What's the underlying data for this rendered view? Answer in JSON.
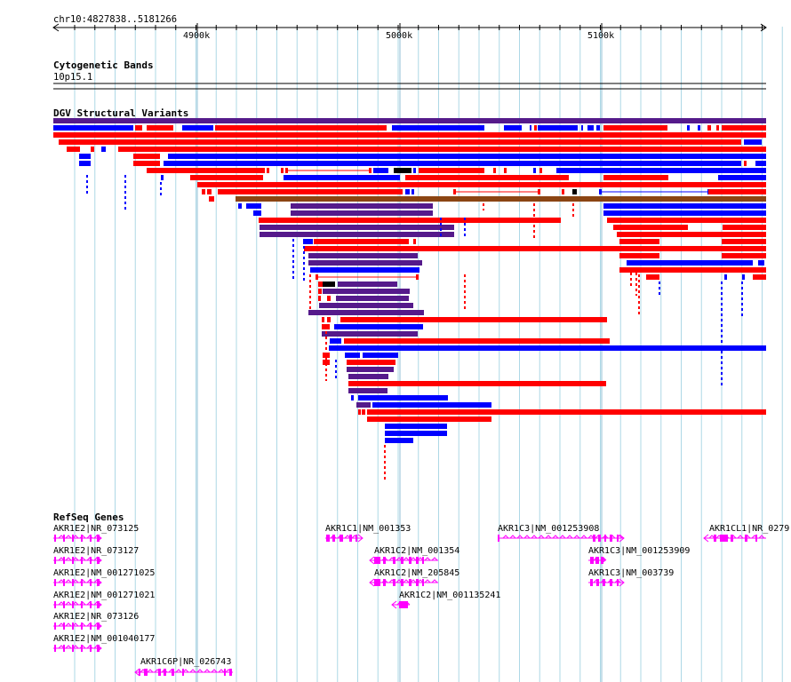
{
  "location": "chr10:4827838..5181266",
  "ruler": {
    "ticks": [
      "4900k",
      "5000k",
      "5100k"
    ]
  },
  "tracks": {
    "cytoband": {
      "title": "Cytogenetic Bands",
      "band": "10p15.1"
    },
    "dgv": {
      "title": "DGV Structural Variants"
    },
    "refseq": {
      "title": "RefSeq Genes"
    }
  },
  "colors": {
    "gain": "#0000ff",
    "loss": "#ff0000",
    "both": "#551a8b",
    "inversion": "#8b4513",
    "gene": "#ff00ff",
    "grid": "#add8e6"
  },
  "genes": [
    {
      "label": "AKR1E2|NR_073125"
    },
    {
      "label": "AKR1E2|NR_073127"
    },
    {
      "label": "AKR1E2|NM_001271025"
    },
    {
      "label": "AKR1E2|NM_001271021"
    },
    {
      "label": "AKR1E2|NR_073126"
    },
    {
      "label": "AKR1E2|NM_001040177"
    },
    {
      "label": "AKR1C6P|NR_026743"
    },
    {
      "label": "AKR1C1|NM_001353"
    },
    {
      "label": "AKR1C2|NM_001354"
    },
    {
      "label": "AKR1C2|NM_205845"
    },
    {
      "label": "AKR1C2|NM_001135241"
    },
    {
      "label": "AKR1C3|NM_001253908"
    },
    {
      "label": "AKR1C3|NM_001253909"
    },
    {
      "label": "AKR1C3|NM_003739"
    },
    {
      "label": "AKR1CL1|NR_0279"
    }
  ]
}
